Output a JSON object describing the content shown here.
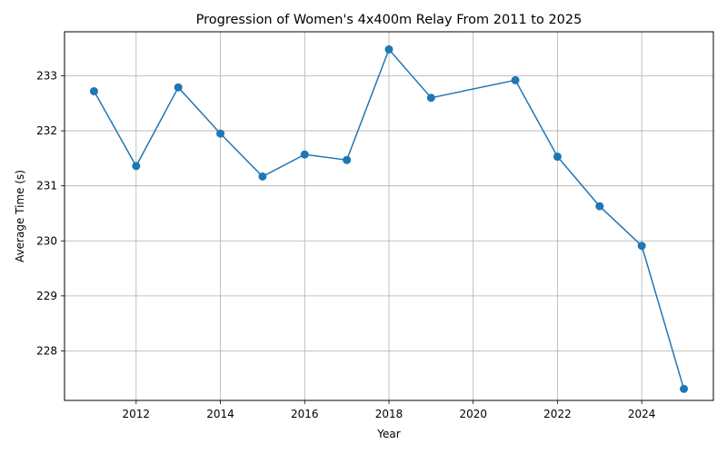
{
  "chart_data": {
    "type": "line",
    "title": "Progression of Women's 4x400m Relay From 2011 to 2025",
    "xlabel": "Year",
    "ylabel": "Average Time (s)",
    "y_inverted": true,
    "xlim": [
      2010.3,
      2025.7
    ],
    "ylim": [
      233.8,
      227.1
    ],
    "xticks": [
      2012,
      2014,
      2016,
      2018,
      2020,
      2022,
      2024
    ],
    "yticks": [
      228,
      229,
      230,
      231,
      232,
      233
    ],
    "grid": true,
    "series_color": "#1f77b4",
    "x": [
      2011,
      2012,
      2013,
      2014,
      2015,
      2016,
      2017,
      2018,
      2019,
      2021,
      2022,
      2023,
      2024,
      2025
    ],
    "y": [
      232.72,
      231.36,
      232.79,
      231.95,
      231.17,
      231.57,
      231.47,
      233.48,
      232.6,
      232.92,
      231.53,
      230.63,
      229.91,
      227.31
    ]
  }
}
